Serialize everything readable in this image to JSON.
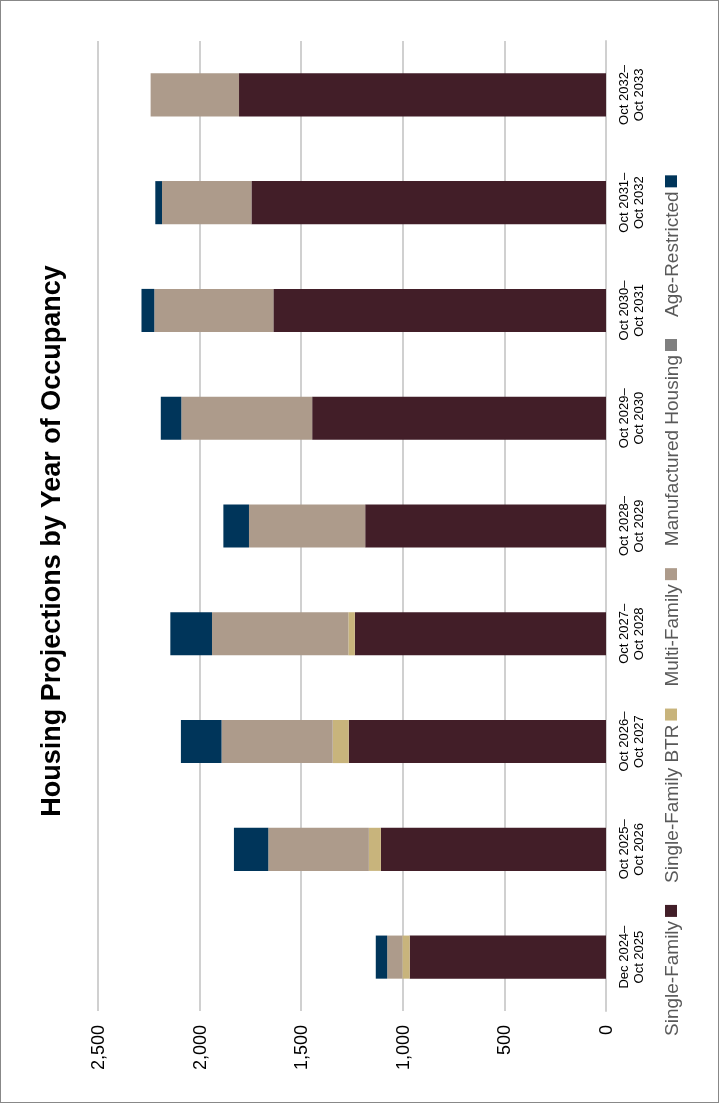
{
  "chart_data": {
    "type": "bar",
    "title": "Housing Projections by Year of Occupancy",
    "stacked": true,
    "orientation": "horizontal",
    "categories": [
      "Oct 2032–Oct 2033",
      "Oct 2031–Oct 2032",
      "Oct 2030–Oct 2031",
      "Oct 2029–Oct 2030",
      "Oct 2028–Oct 2029",
      "Oct 2027–Oct 2028",
      "Oct 2026–Oct 2027",
      "Oct 2025–Oct 2026",
      "Dec 2024–Oct 2025"
    ],
    "series": [
      {
        "name": "Single-Family",
        "color": "#421e28",
        "values": [
          1806,
          1745,
          1637,
          1446,
          1185,
          1236,
          1266,
          1108,
          966
        ]
      },
      {
        "name": "Single-Family BTR",
        "color": "#c8b47c",
        "values": [
          0,
          0,
          0,
          0,
          0,
          32,
          79,
          59,
          36
        ]
      },
      {
        "name": "Multi-Family",
        "color": "#ad9b8b",
        "values": [
          435,
          440,
          586,
          644,
          572,
          671,
          547,
          495,
          75
        ]
      },
      {
        "name": "Manufactured Housing",
        "color": "#7f7f7f",
        "values": [
          0,
          0,
          0,
          0,
          0,
          0,
          0,
          0,
          0
        ]
      },
      {
        "name": "Age-Restricted",
        "color": "#00355a",
        "values": [
          0,
          33,
          63,
          101,
          126,
          205,
          200,
          169,
          56
        ]
      }
    ],
    "xlim": [
      2500,
      0
    ],
    "xticks": [
      {
        "value": 2500,
        "label": "2,500"
      },
      {
        "value": 2000,
        "label": "2,000"
      },
      {
        "value": 1500,
        "label": "1,500"
      },
      {
        "value": 1000,
        "label": "1,000"
      },
      500,
      0
    ],
    "grid": "x",
    "legend": "right"
  }
}
